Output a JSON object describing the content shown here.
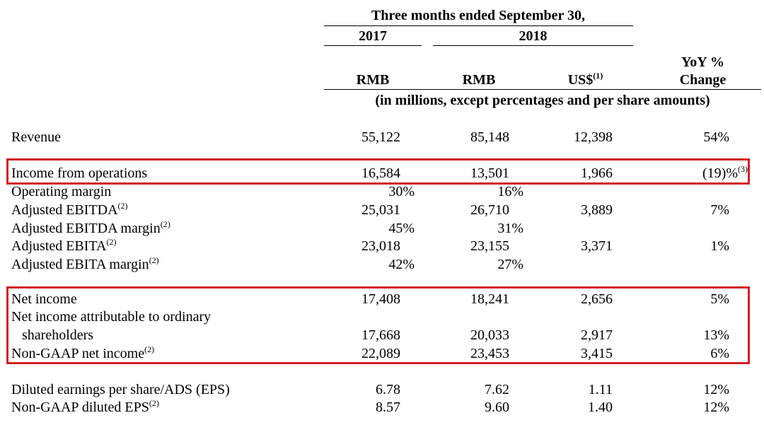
{
  "header": {
    "period_title": "Three months ended September 30,",
    "year_2017": "2017",
    "year_2018": "2018",
    "col_rmb_2017": "RMB",
    "col_rmb_2018": "RMB",
    "col_usd": "US$",
    "col_usd_note": "(1)",
    "col_yoy_line1": "YoY %",
    "col_yoy_line2": "Change",
    "units_note": "(in millions, except percentages and per share amounts)"
  },
  "rows": {
    "revenue": {
      "label": "Revenue",
      "v2017": "55,122",
      "v2018": "85,148",
      "usd": "12,398",
      "yoy": "54%"
    },
    "income_ops": {
      "label": "Income from operations",
      "v2017": "16,584",
      "v2018": "13,501",
      "usd": "1,966",
      "yoy": "(19)%",
      "yoy_note": "(3)"
    },
    "op_margin": {
      "label": "Operating margin",
      "v2017": "30%",
      "v2018": "16%"
    },
    "adj_ebitda": {
      "label": "Adjusted EBITDA",
      "note": "(2)",
      "v2017": "25,031",
      "v2018": "26,710",
      "usd": "3,889",
      "yoy": "7%"
    },
    "adj_ebitda_margin": {
      "label": "Adjusted EBITDA margin",
      "note": "(2)",
      "v2017": "45%",
      "v2018": "31%"
    },
    "adj_ebita": {
      "label": "Adjusted EBITA",
      "note": "(2)",
      "v2017": "23,018",
      "v2018": "23,155",
      "usd": "3,371",
      "yoy": "1%"
    },
    "adj_ebita_margin": {
      "label": "Adjusted EBITA margin",
      "note": "(2)",
      "v2017": "42%",
      "v2018": "27%"
    },
    "net_income": {
      "label": "Net income",
      "v2017": "17,408",
      "v2018": "18,241",
      "usd": "2,656",
      "yoy": "5%"
    },
    "ni_attrib": {
      "label_line1": "Net income attributable to ordinary",
      "label_line2": "shareholders",
      "v2017": "17,668",
      "v2018": "20,033",
      "usd": "2,917",
      "yoy": "13%"
    },
    "nongaap_ni": {
      "label": "Non-GAAP net income",
      "note": "(2)",
      "v2017": "22,089",
      "v2018": "23,453",
      "usd": "3,415",
      "yoy": "6%"
    },
    "diluted_eps": {
      "label": "Diluted earnings per share/ADS (EPS)",
      "v2017": "6.78",
      "v2018": "7.62",
      "usd": "1.11",
      "yoy": "12%"
    },
    "nongaap_eps": {
      "label": "Non-GAAP diluted EPS",
      "note": "(2)",
      "v2017": "8.57",
      "v2018": "9.60",
      "usd": "1.40",
      "yoy": "12%"
    }
  },
  "colors": {
    "highlight_box": "#d21f26",
    "text": "#000000",
    "background": "#ffffff"
  }
}
